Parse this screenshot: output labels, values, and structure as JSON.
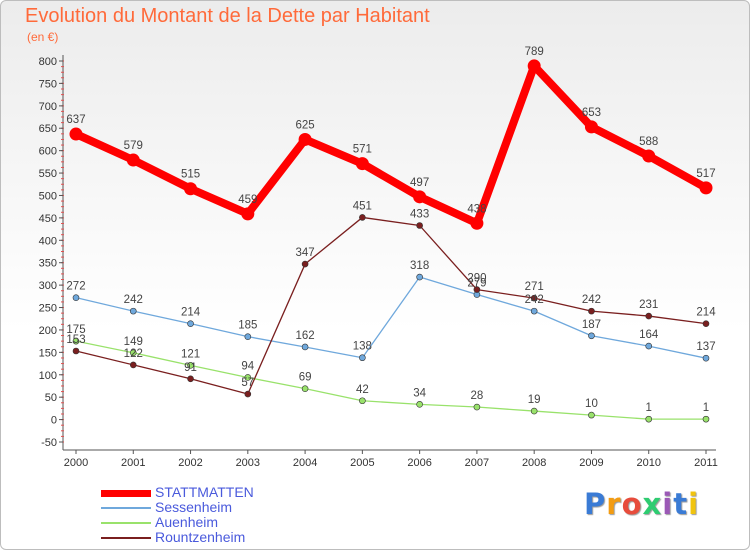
{
  "chart_data": {
    "type": "line",
    "title": "Evolution du Montant de la Dette par Habitant",
    "subtitle": "(en €)",
    "x": [
      "2000",
      "2001",
      "2002",
      "2003",
      "2004",
      "2005",
      "2006",
      "2007",
      "2008",
      "2009",
      "2010",
      "2011"
    ],
    "yticks": [
      "-50",
      "0",
      "50",
      "100",
      "150",
      "200",
      "250",
      "300",
      "350",
      "400",
      "450",
      "500",
      "550",
      "600",
      "650",
      "700",
      "750",
      "800"
    ],
    "ylim": [
      -50,
      800
    ],
    "grid": false,
    "legend_position": "bottom-left",
    "series": [
      {
        "name": "STATTMATTEN",
        "color": "#ff0000",
        "values": [
          637,
          579,
          515,
          459,
          625,
          571,
          497,
          438,
          789,
          653,
          588,
          517
        ],
        "labels": [
          "637",
          "579",
          "515",
          "459",
          "625",
          "571",
          "497",
          "438",
          "789",
          "653",
          "588",
          "517"
        ]
      },
      {
        "name": "Sessenheim",
        "color": "#6fa8dc",
        "values": [
          272,
          242,
          214,
          185,
          162,
          138,
          318,
          279,
          242,
          187,
          164,
          137
        ],
        "labels": [
          "272",
          "242",
          "214",
          "185",
          "162",
          "138",
          "318",
          "279",
          "242",
          "187",
          "164",
          "137"
        ]
      },
      {
        "name": "Auenheim",
        "color": "#99e26b",
        "values": [
          175,
          149,
          121,
          94,
          69,
          42,
          34,
          28,
          19,
          10,
          1,
          1
        ],
        "labels": [
          "175",
          "149",
          "121",
          "94",
          "69",
          "42",
          "34",
          "28",
          "19",
          "10",
          "1",
          "1"
        ]
      },
      {
        "name": "Rountzenheim",
        "color": "#7a1f1f",
        "values": [
          153,
          122,
          91,
          57,
          347,
          451,
          433,
          290,
          271,
          242,
          231,
          214
        ],
        "labels": [
          "153",
          "122",
          "91",
          "57",
          "347",
          "451",
          "433",
          "290",
          "271",
          "242",
          "231",
          "214"
        ]
      }
    ]
  },
  "brand": {
    "letters": [
      {
        "ch": "P",
        "color": "#3a7bd5"
      },
      {
        "ch": "r",
        "color": "#f39c12"
      },
      {
        "ch": "o",
        "color": "#e74c3c"
      },
      {
        "ch": "x",
        "color": "#2ecc71"
      },
      {
        "ch": "i",
        "color": "#9b59b6"
      },
      {
        "ch": "t",
        "color": "#3a7bd5"
      },
      {
        "ch": "i",
        "color": "#f1c40f"
      }
    ]
  }
}
